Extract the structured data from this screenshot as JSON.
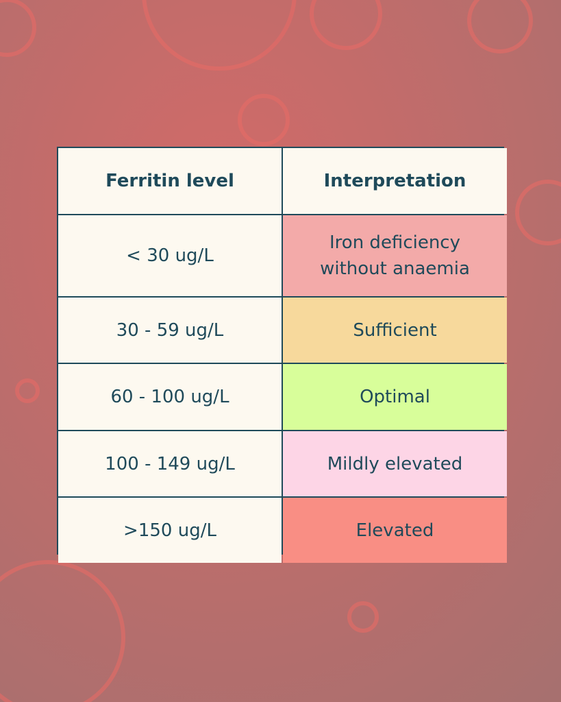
{
  "table": {
    "header": [
      "Ferritin level",
      "Interpretation"
    ],
    "rows": [
      {
        "level": "< 30 ug/L",
        "interpretation": "Iron deficiency without anaemia",
        "color": "#f3aaa9"
      },
      {
        "level": "30 - 59 ug/L",
        "interpretation": "Sufficient",
        "color": "#f7d99c"
      },
      {
        "level": "60 - 100 ug/L",
        "interpretation": "Optimal",
        "color": "#d8fe9a"
      },
      {
        "level": "100 - 149 ug/L",
        "interpretation": "Mildly elevated",
        "color": "#fdd5e6"
      },
      {
        "level": ">150 ug/L",
        "interpretation": "Elevated",
        "color": "#f98e84"
      }
    ]
  }
}
